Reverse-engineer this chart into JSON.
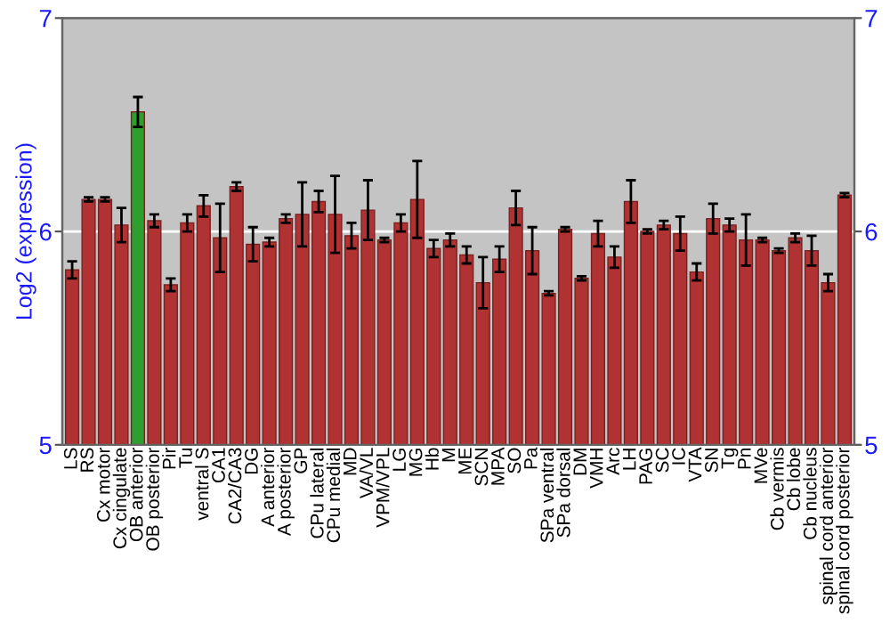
{
  "chart_data": {
    "type": "bar",
    "ylabel": "Log2 (expression)",
    "categories": [
      "LS",
      "RS",
      "Cx motor",
      "Cx cingulate",
      "OB anterior",
      "OB posterior",
      "Pir",
      "Tu",
      "ventral S",
      "CA1",
      "CA2/CA3",
      "DG",
      "A anterior",
      "A posterior",
      "GP",
      "CPu lateral",
      "CPu medial",
      "MD",
      "VA/VL",
      "VPM/VPL",
      "LG",
      "MG",
      "Hb",
      "M",
      "ME",
      "SCN",
      "MPA",
      "SO",
      "Pa",
      "SPa ventral",
      "SPa dorsal",
      "DM",
      "VMH",
      "Arc",
      "LH",
      "PAG",
      "SC",
      "IC",
      "VTA",
      "SN",
      "Tg",
      "Pn",
      "MVe",
      "Cb vermis",
      "Cb lobe",
      "Cb nucleus",
      "spinal cord anterior",
      "spinal cord posterior"
    ],
    "values": [
      5.82,
      6.15,
      6.15,
      6.03,
      6.56,
      6.05,
      5.75,
      6.04,
      6.12,
      5.97,
      6.21,
      5.94,
      5.95,
      6.06,
      6.08,
      6.14,
      6.08,
      5.98,
      6.1,
      5.96,
      6.04,
      6.15,
      5.92,
      5.96,
      5.89,
      5.76,
      5.87,
      6.11,
      5.91,
      5.71,
      6.01,
      5.78,
      5.99,
      5.88,
      6.14,
      6.0,
      6.03,
      5.99,
      5.81,
      6.06,
      6.03,
      5.96,
      5.96,
      5.91,
      5.97,
      5.91,
      5.76,
      6.17
    ],
    "errors": [
      0.04,
      0.01,
      0.01,
      0.08,
      0.07,
      0.03,
      0.03,
      0.04,
      0.05,
      0.16,
      0.02,
      0.08,
      0.02,
      0.02,
      0.15,
      0.05,
      0.18,
      0.06,
      0.14,
      0.01,
      0.04,
      0.18,
      0.04,
      0.03,
      0.04,
      0.12,
      0.06,
      0.08,
      0.11,
      0.01,
      0.01,
      0.01,
      0.06,
      0.05,
      0.1,
      0.01,
      0.02,
      0.08,
      0.04,
      0.07,
      0.03,
      0.12,
      0.01,
      0.01,
      0.02,
      0.07,
      0.04,
      0.01
    ],
    "colors": [
      "#b03232",
      "#b03232",
      "#b03232",
      "#b03232",
      "#2e9e2e",
      "#b03232",
      "#b03232",
      "#b03232",
      "#b03232",
      "#b03232",
      "#b03232",
      "#b03232",
      "#b03232",
      "#b03232",
      "#b03232",
      "#b03232",
      "#b03232",
      "#b03232",
      "#b03232",
      "#b03232",
      "#b03232",
      "#b03232",
      "#b03232",
      "#b03232",
      "#b03232",
      "#b03232",
      "#b03232",
      "#b03232",
      "#b03232",
      "#b03232",
      "#b03232",
      "#b03232",
      "#b03232",
      "#b03232",
      "#b03232",
      "#b03232",
      "#b03232",
      "#b03232",
      "#b03232",
      "#b03232",
      "#b03232",
      "#b03232",
      "#b03232",
      "#b03232",
      "#b03232",
      "#b03232",
      "#b03232",
      "#b03232"
    ],
    "ylim": [
      5,
      7
    ],
    "yticks": [
      5,
      6,
      7
    ],
    "y2lim": [
      5,
      7
    ],
    "y2ticks": [
      5,
      6,
      7
    ],
    "grid": "y"
  }
}
